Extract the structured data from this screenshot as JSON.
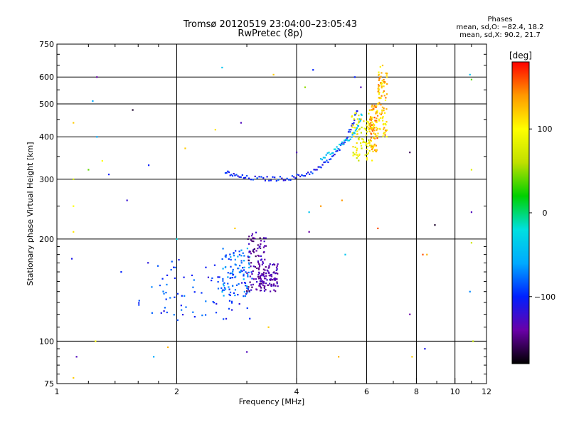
{
  "chart_data": {
    "type": "scatter",
    "title": "Tromsø 20120519 23:04:00–23:05:43",
    "subtitle": "RwPretec (8p)",
    "xlabel": "Frequency [MHz]",
    "ylabel": "Stationary phase Virtual Height [km]",
    "x_scale": "log",
    "y_scale": "log",
    "xlim": [
      1,
      12
    ],
    "ylim": [
      75,
      750
    ],
    "x_ticks": [
      1,
      2,
      4,
      6,
      8,
      10,
      12
    ],
    "x_tick_labels": [
      "1",
      "2",
      "4",
      "6",
      "8",
      "10",
      "12"
    ],
    "x_grid": [
      2,
      4,
      6,
      8,
      10
    ],
    "y_ticks": [
      75,
      100,
      200,
      300,
      400,
      500,
      600,
      750
    ],
    "y_tick_labels": [
      "75",
      "100",
      "200",
      "300",
      "400",
      "500",
      "600",
      "750"
    ],
    "y_grid": [
      100,
      200,
      300,
      400,
      500,
      600
    ],
    "grid": true,
    "phases_label": "Phases",
    "phase_stats": [
      "mean, sd,O: −82.4, 18.2",
      "mean, sd,X:  90.2, 21.7"
    ],
    "colorbar": {
      "label": "[deg]",
      "range": [
        -180,
        180
      ],
      "ticks": [
        100,
        0,
        -100
      ],
      "tick_labels": [
        "100",
        "0",
        "−100"
      ],
      "colors": [
        "#000000",
        "#6a00a8",
        "#0020ff",
        "#00aaff",
        "#00e0e0",
        "#00d000",
        "#c0e000",
        "#ffff00",
        "#ff9900",
        "#ff0000"
      ]
    },
    "series": [
      {
        "kind": "cluster",
        "x_range": [
          1.6,
          3.1
        ],
        "y_range": [
          115,
          175
        ],
        "phase_range": [
          -120,
          -70
        ]
      },
      {
        "kind": "cluster",
        "x_range": [
          2.6,
          3.05
        ],
        "y_range": [
          135,
          190
        ],
        "phase_range": [
          -100,
          -50
        ]
      },
      {
        "kind": "cluster",
        "x_range": [
          3.0,
          3.35
        ],
        "y_range": [
          140,
          210
        ],
        "phase_range": [
          -160,
          -120
        ]
      },
      {
        "kind": "cluster",
        "x_range": [
          3.2,
          3.6
        ],
        "y_range": [
          140,
          170
        ],
        "phase_range": [
          -150,
          -120
        ]
      },
      {
        "kind": "trace",
        "x": [
          2.65,
          2.8,
          3.0,
          3.3,
          3.6,
          3.9,
          4.2,
          4.5,
          4.8,
          5.1,
          5.35,
          5.55,
          5.7
        ],
        "y": [
          315,
          307,
          303,
          301,
          301,
          303,
          310,
          320,
          340,
          365,
          400,
          440,
          490
        ],
        "phase_range": [
          -120,
          -80
        ]
      },
      {
        "kind": "trace",
        "x": [
          4.6,
          4.9,
          5.2,
          5.5,
          5.7,
          5.85
        ],
        "y": [
          345,
          360,
          380,
          400,
          430,
          470
        ],
        "phase_range": [
          -60,
          -20
        ]
      },
      {
        "kind": "cluster",
        "x_range": [
          5.5,
          6.2
        ],
        "y_range": [
          340,
          470
        ],
        "phase_range": [
          60,
          120
        ]
      },
      {
        "kind": "cluster",
        "x_range": [
          6.1,
          6.4
        ],
        "y_range": [
          360,
          500
        ],
        "phase_range": [
          100,
          160
        ]
      },
      {
        "kind": "cluster",
        "x_range": [
          6.4,
          6.75
        ],
        "y_range": [
          400,
          650
        ],
        "phase_range": [
          90,
          150
        ]
      },
      {
        "kind": "scatter",
        "points": [
          [
            1.1,
            440,
            120
          ],
          [
            1.1,
            300,
            70
          ],
          [
            1.1,
            250,
            100
          ],
          [
            1.1,
            210,
            110
          ],
          [
            1.09,
            175,
            -110
          ],
          [
            1.12,
            90,
            -130
          ],
          [
            1.1,
            78,
            120
          ],
          [
            1.26,
            600,
            -140
          ],
          [
            1.26,
            400,
            -60
          ],
          [
            1.23,
            510,
            -60
          ],
          [
            1.2,
            320,
            40
          ],
          [
            1.3,
            340,
            100
          ],
          [
            1.35,
            310,
            -100
          ],
          [
            1.55,
            480,
            -170
          ],
          [
            1.45,
            160,
            -100
          ],
          [
            1.5,
            260,
            -120
          ],
          [
            1.7,
            330,
            -100
          ],
          [
            1.75,
            90,
            -60
          ],
          [
            2.1,
            370,
            120
          ],
          [
            2.6,
            640,
            -40
          ],
          [
            2.5,
            420,
            110
          ],
          [
            2.9,
            440,
            -130
          ],
          [
            3.5,
            610,
            120
          ],
          [
            4.0,
            360,
            -130
          ],
          [
            4.2,
            560,
            50
          ],
          [
            4.4,
            630,
            -100
          ],
          [
            4.3,
            240,
            -40
          ],
          [
            4.3,
            210,
            -140
          ],
          [
            4.6,
            250,
            140
          ],
          [
            5.1,
            90,
            130
          ],
          [
            5.3,
            180,
            -40
          ],
          [
            5.2,
            260,
            140
          ],
          [
            5.6,
            600,
            -100
          ],
          [
            5.8,
            560,
            -130
          ],
          [
            6.4,
            215,
            160
          ],
          [
            7.7,
            360,
            -160
          ],
          [
            7.7,
            120,
            -140
          ],
          [
            7.8,
            90,
            120
          ],
          [
            8.4,
            95,
            -110
          ],
          [
            8.9,
            220,
            -170
          ],
          [
            10.9,
            610,
            -40
          ],
          [
            11.0,
            590,
            40
          ],
          [
            11.0,
            320,
            80
          ],
          [
            11.0,
            240,
            -130
          ],
          [
            11.0,
            195,
            70
          ],
          [
            11.1,
            100,
            60
          ],
          [
            10.9,
            140,
            -70
          ],
          [
            8.3,
            180,
            160
          ],
          [
            8.5,
            180,
            130
          ],
          [
            3.4,
            110,
            120
          ],
          [
            2.0,
            200,
            -20
          ],
          [
            1.25,
            100,
            100
          ],
          [
            1.9,
            96,
            130
          ],
          [
            3.0,
            93,
            -130
          ],
          [
            2.8,
            215,
            120
          ]
        ]
      }
    ]
  }
}
